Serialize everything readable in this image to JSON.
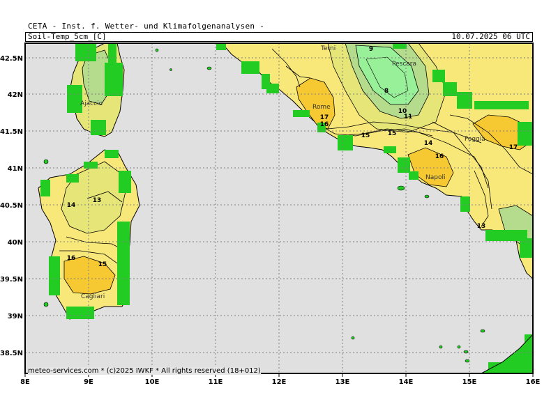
{
  "header": {
    "title": "CETA - Inst. f. Wetter- und Klimafolgenanalysen -",
    "parameter": "Soil-Temp_5cm_[C]",
    "valid_time": "10.07.2025 06 UTC"
  },
  "footer": "meteo-services.com * (c)2025 IWKF * All rights reserved (18+012)",
  "axes": {
    "x_ticks": [
      "8E",
      "9E",
      "10E",
      "11E",
      "12E",
      "13E",
      "14E",
      "15E",
      "16E"
    ],
    "y_ticks": [
      "42.5N",
      "42N",
      "41.5N",
      "41N",
      "40.5N",
      "40N",
      "39.5N",
      "39N",
      "38.5N"
    ]
  },
  "cities": [
    "Terni",
    "Pescara",
    "Ajaccio",
    "Rome",
    "Foggia",
    "Napoli",
    "Cagliari"
  ],
  "contour_labels": [
    "9",
    "8",
    "10",
    "11",
    "17",
    "16",
    "15",
    "15",
    "14",
    "16",
    "17",
    "14",
    "13",
    "13",
    "16",
    "15"
  ],
  "colors": {
    "sea": "#e0e0e0",
    "missing": "#22cc22",
    "t8_10": "#98f098",
    "t10_12": "#b4dc8c",
    "t12_14": "#e6e678",
    "t14_16": "#f8e87a",
    "t16_18": "#f6c832"
  }
}
